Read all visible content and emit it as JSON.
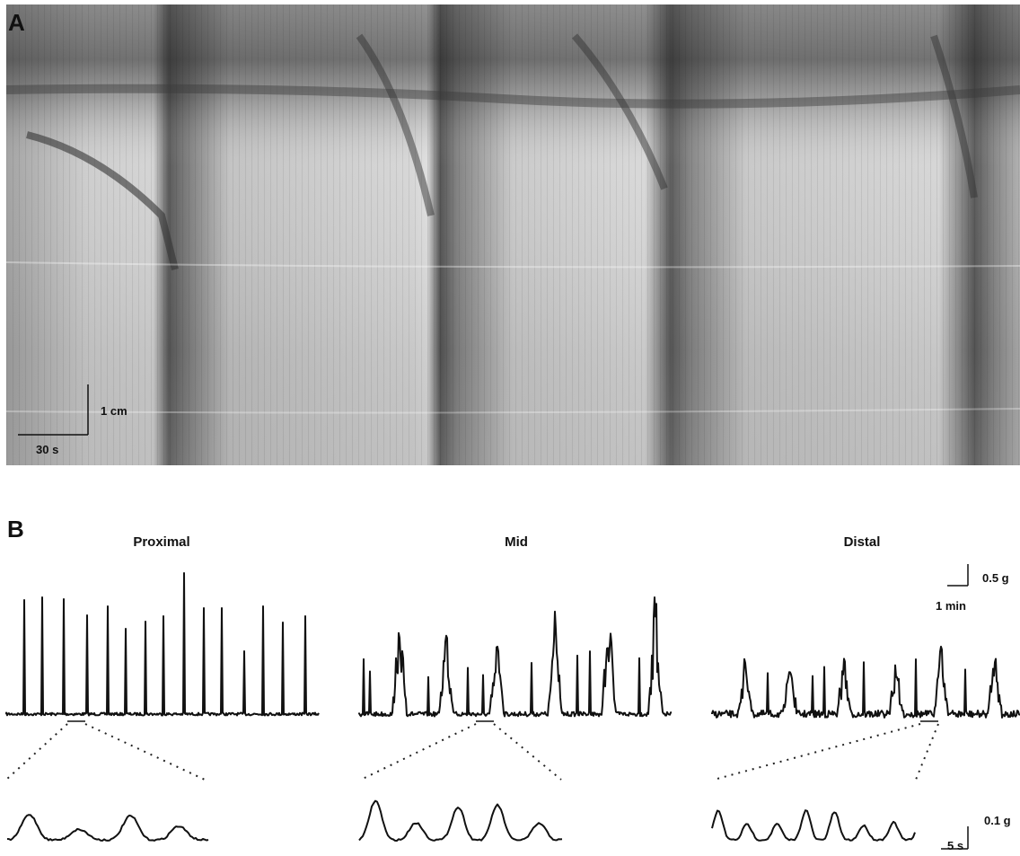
{
  "panel_a": {
    "label": "A",
    "scale_y": "1 cm",
    "scale_x": "30 s"
  },
  "panel_b": {
    "label": "B",
    "columns": [
      {
        "title": "Proximal"
      },
      {
        "title": "Mid"
      },
      {
        "title": "Distal"
      }
    ],
    "scale_top": {
      "y": "0.5 g",
      "x": "1 min"
    },
    "scale_bottom": {
      "y": "0.1 g",
      "x": "5 s"
    }
  }
}
